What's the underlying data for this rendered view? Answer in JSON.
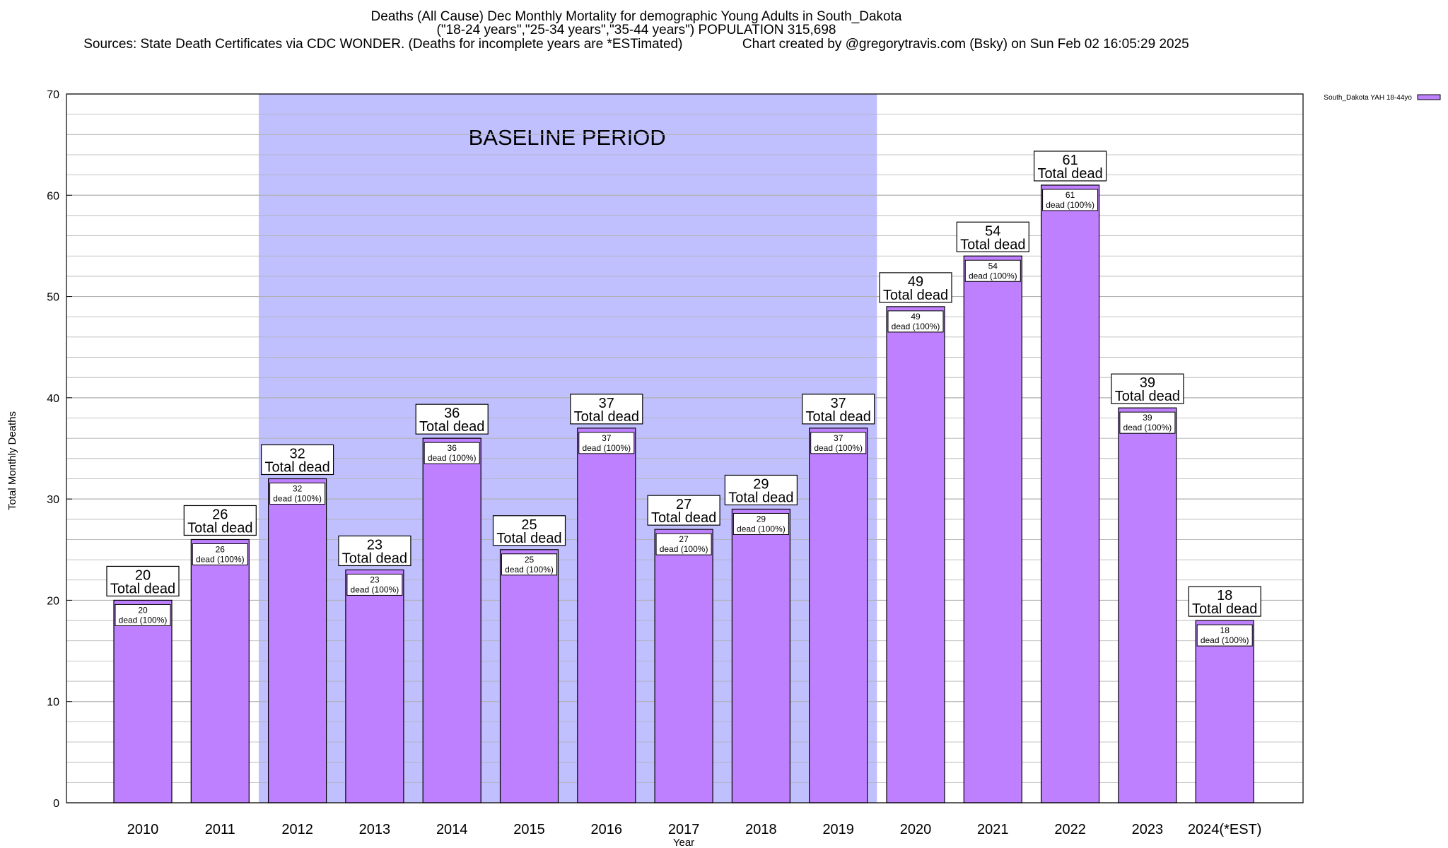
{
  "header": {
    "title": "Deaths (All Cause) Dec Monthly Mortality for demographic Young Adults in South_Dakota",
    "subtitle": "(\"18-24 years\",\"25-34 years\",\"35-44 years\") POPULATION 315,698",
    "sources": "Sources: State Death Certificates via CDC WONDER. (Deaths for incomplete years are *ESTimated)                Chart created by @gregorytravis.com (Bsky) on Sun Feb 02 16:05:29 2025"
  },
  "chart_data": {
    "type": "bar",
    "xlabel": "Year",
    "ylabel": "Total Monthly Deaths",
    "ylim": [
      0,
      70
    ],
    "yticks": [
      0,
      10,
      20,
      30,
      40,
      50,
      60,
      70
    ],
    "grid": true,
    "legend_position": "top-right",
    "categories": [
      "2010",
      "2011",
      "2012",
      "2013",
      "2014",
      "2015",
      "2016",
      "2017",
      "2018",
      "2019",
      "2020",
      "2021",
      "2022",
      "2023",
      "2024(*EST)"
    ],
    "series": [
      {
        "name": "South_Dakota YAH 18-44yo",
        "values": [
          20,
          26,
          32,
          23,
          36,
          25,
          37,
          27,
          29,
          37,
          49,
          54,
          61,
          39,
          18
        ]
      }
    ],
    "total_label_suffix": "Total dead",
    "inner_label_suffix": "dead (100%)",
    "baseline": {
      "label": "BASELINE PERIOD",
      "from": "2012",
      "to": "2019"
    },
    "colors": {
      "bar": "#bf80ff",
      "baseline": "#c0c0ff",
      "grid": "#b0b0b0"
    }
  }
}
